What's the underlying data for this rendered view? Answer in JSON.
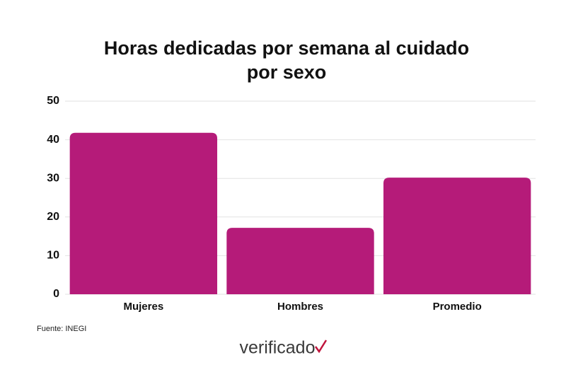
{
  "chart_data": {
    "type": "bar",
    "title": [
      "Horas dedicadas por semana al cuidado",
      "por sexo"
    ],
    "categories": [
      "Mujeres",
      "Hombres",
      "Promedio"
    ],
    "values": [
      41.8,
      17.2,
      30.2
    ],
    "color": "#b51b79",
    "ylim": [
      0,
      50
    ],
    "yticks": [
      0,
      10,
      20,
      30,
      40,
      50
    ],
    "grid": true,
    "source": "Fuente: INEGI",
    "logo": "verificado"
  }
}
